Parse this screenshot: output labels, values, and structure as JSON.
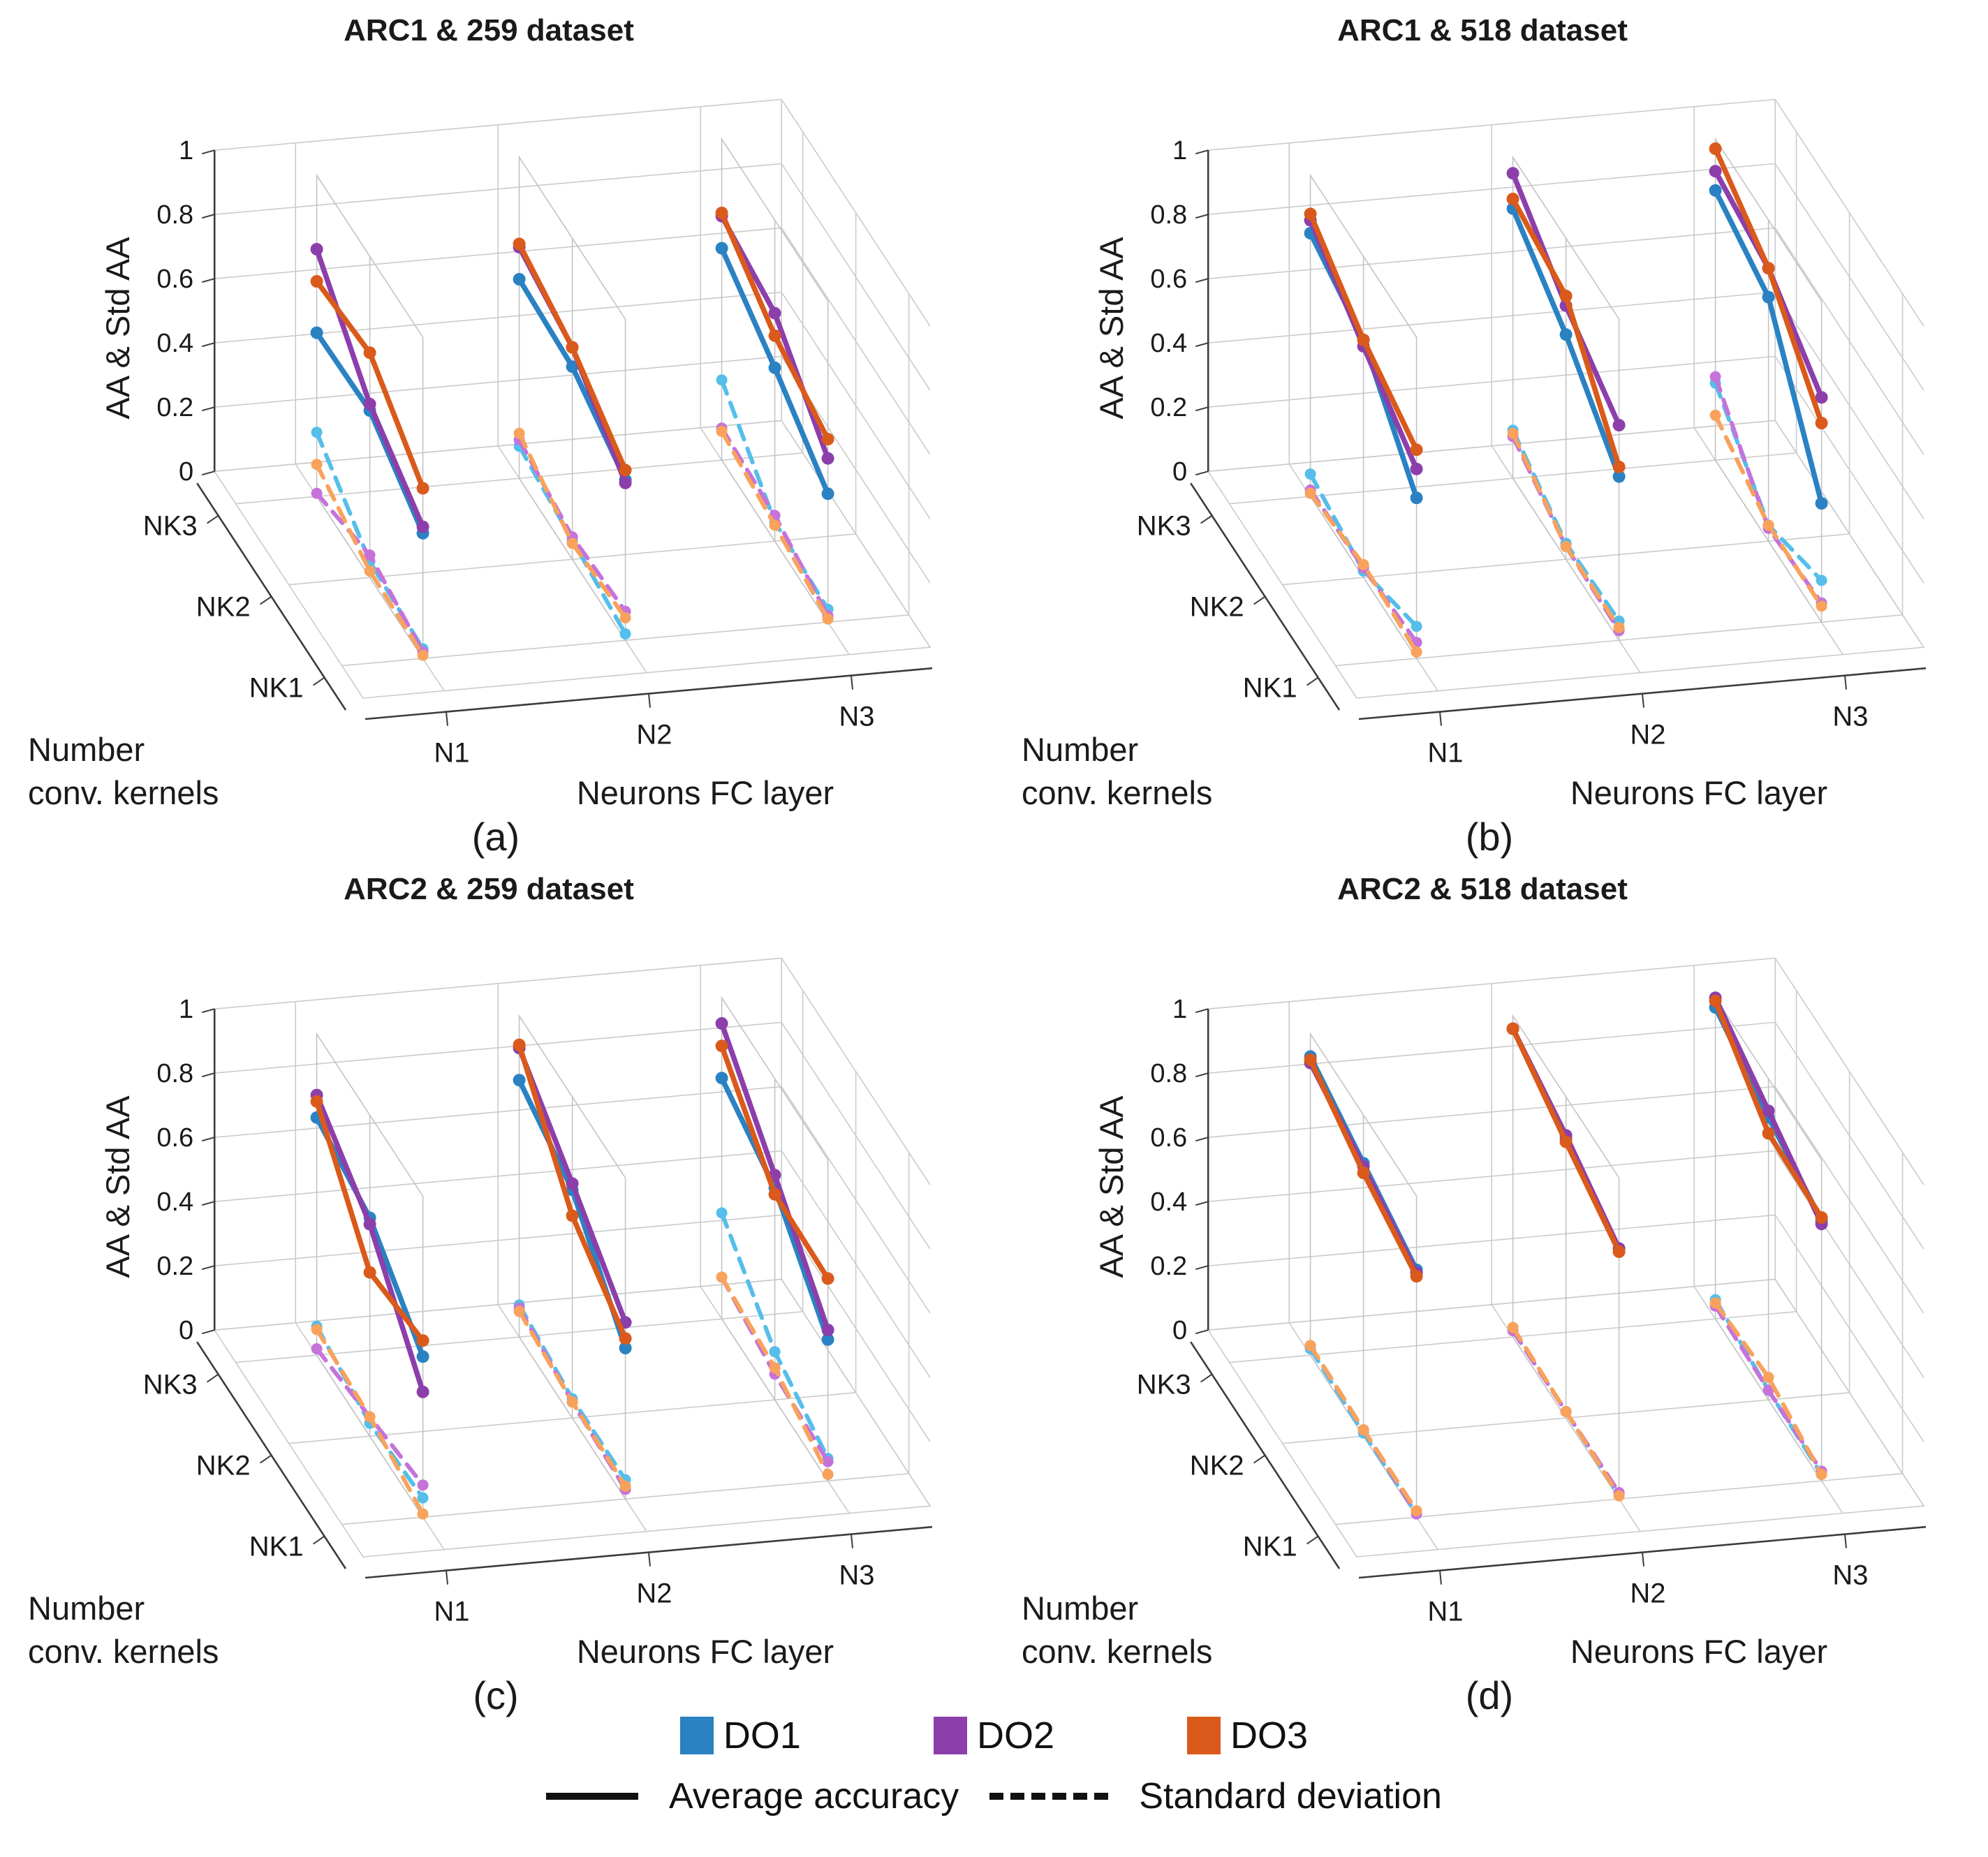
{
  "figure": {
    "background": "#FFFFFF",
    "legend": {
      "series": [
        {
          "label": "DO1",
          "color": "#2A82C3",
          "light_color": "#55BEEA"
        },
        {
          "label": "DO2",
          "color": "#8C3FAB",
          "light_color": "#C573DB"
        },
        {
          "label": "DO3",
          "color": "#DA5A1B",
          "light_color": "#F8A25C"
        }
      ],
      "line_types": [
        {
          "label": "Average accuracy",
          "style": "solid"
        },
        {
          "label": "Standard deviation",
          "style": "dashed"
        }
      ]
    },
    "axes_shared": {
      "zlabel": "AA & Std AA",
      "xlabel": "Neurons FC layer",
      "ylabel": "Number conv. kernels",
      "ylabel_lines": [
        "Number",
        "conv. kernels"
      ],
      "x_ticks": [
        "N1",
        "N2",
        "N3"
      ],
      "y_ticks_back_to_front": [
        "NK3",
        "NK2",
        "NK1"
      ],
      "z_ticks": [
        "0",
        "0.2",
        "0.4",
        "0.6",
        "0.8",
        "1"
      ],
      "zlim": [
        0,
        1
      ],
      "grid": true
    }
  },
  "chart_data": [
    {
      "id": "a",
      "label": "(a)",
      "title": "ARC1 & 259 dataset",
      "type": "line",
      "projection": "3d",
      "nk_order": [
        "NK3",
        "NK2",
        "NK1"
      ],
      "average_accuracy": {
        "N1": {
          "DO1": [
            0.51,
            0.52,
            0.39
          ],
          "DO2": [
            0.77,
            0.54,
            0.41
          ],
          "DO3": [
            0.67,
            0.7,
            0.53
          ]
        },
        "N2": {
          "DO1": [
            0.62,
            0.6,
            0.5
          ],
          "DO2": [
            0.72,
            0.66,
            0.49
          ],
          "DO3": [
            0.73,
            0.66,
            0.53
          ]
        },
        "N3": {
          "DO1": [
            0.66,
            0.54,
            0.4
          ],
          "DO2": [
            0.76,
            0.71,
            0.51
          ],
          "DO3": [
            0.77,
            0.64,
            0.57
          ]
        }
      },
      "standard_deviation": {
        "N1": {
          "DO1": [
            0.2,
            0.05,
            0.03
          ],
          "DO2": [
            0.01,
            0.07,
            0.02
          ],
          "DO3": [
            0.1,
            0.02,
            0.01
          ]
        },
        "N2": {
          "DO1": [
            0.1,
            0.06,
            0.02
          ],
          "DO2": [
            0.12,
            0.07,
            0.09
          ],
          "DO3": [
            0.14,
            0.05,
            0.07
          ]
        },
        "N3": {
          "DO1": [
            0.25,
            0.06,
            0.04
          ],
          "DO2": [
            0.1,
            0.08,
            0.02
          ],
          "DO3": [
            0.09,
            0.05,
            0.01
          ]
        }
      }
    },
    {
      "id": "b",
      "label": "(b)",
      "title": "ARC1 & 518 dataset",
      "type": "line",
      "projection": "3d",
      "nk_order": [
        "NK3",
        "NK2",
        "NK1"
      ],
      "average_accuracy": {
        "N1": {
          "DO1": [
            0.82,
            0.74,
            0.5
          ],
          "DO2": [
            0.86,
            0.72,
            0.59
          ],
          "DO3": [
            0.88,
            0.74,
            0.65
          ]
        },
        "N2": {
          "DO1": [
            0.84,
            0.7,
            0.51
          ],
          "DO2": [
            0.95,
            0.79,
            0.67
          ],
          "DO3": [
            0.87,
            0.82,
            0.54
          ]
        },
        "N3": {
          "DO1": [
            0.84,
            0.76,
            0.37
          ],
          "DO2": [
            0.9,
            0.85,
            0.7
          ],
          "DO3": [
            0.97,
            0.85,
            0.62
          ]
        }
      },
      "standard_deviation": {
        "N1": {
          "DO1": [
            0.07,
            0.02,
            0.1
          ],
          "DO2": [
            0.02,
            0.03,
            0.05
          ],
          "DO3": [
            0.01,
            0.04,
            0.02
          ]
        },
        "N2": {
          "DO1": [
            0.15,
            0.05,
            0.06
          ],
          "DO2": [
            0.13,
            0.04,
            0.03
          ],
          "DO3": [
            0.14,
            0.04,
            0.04
          ]
        },
        "N3": {
          "DO1": [
            0.24,
            0.05,
            0.13
          ],
          "DO2": [
            0.26,
            0.04,
            0.06
          ],
          "DO3": [
            0.14,
            0.05,
            0.05
          ]
        }
      }
    },
    {
      "id": "c",
      "label": "(c)",
      "title": "ARC2 & 259 dataset",
      "type": "line",
      "projection": "3d",
      "nk_order": [
        "NK3",
        "NK2",
        "NK1"
      ],
      "average_accuracy": {
        "N1": {
          "DO1": [
            0.74,
            0.68,
            0.5
          ],
          "DO2": [
            0.81,
            0.66,
            0.39
          ],
          "DO3": [
            0.79,
            0.51,
            0.55
          ]
        },
        "N2": {
          "DO1": [
            0.8,
            0.71,
            0.47
          ],
          "DO2": [
            0.9,
            0.73,
            0.55
          ],
          "DO3": [
            0.91,
            0.63,
            0.5
          ]
        },
        "N3": {
          "DO1": [
            0.75,
            0.66,
            0.44
          ],
          "DO2": [
            0.92,
            0.7,
            0.47
          ],
          "DO3": [
            0.85,
            0.64,
            0.63
          ]
        }
      },
      "standard_deviation": {
        "N1": {
          "DO1": [
            0.09,
            0.04,
            0.06
          ],
          "DO2": [
            0.02,
            0.06,
            0.1
          ],
          "DO3": [
            0.08,
            0.06,
            0.01
          ]
        },
        "N2": {
          "DO1": [
            0.1,
            0.06,
            0.06
          ],
          "DO2": [
            0.09,
            0.05,
            0.03
          ],
          "DO3": [
            0.08,
            0.05,
            0.04
          ]
        },
        "N3": {
          "DO1": [
            0.33,
            0.15,
            0.07
          ],
          "DO2": [
            0.13,
            0.08,
            0.06
          ],
          "DO3": [
            0.13,
            0.1,
            0.02
          ]
        }
      }
    },
    {
      "id": "d",
      "label": "(d)",
      "title": "ARC2 & 518 dataset",
      "type": "line",
      "projection": "3d",
      "nk_order": [
        "NK3",
        "NK2",
        "NK1"
      ],
      "average_accuracy": {
        "N1": {
          "DO1": [
            0.93,
            0.85,
            0.77
          ],
          "DO2": [
            0.91,
            0.84,
            0.76
          ],
          "DO3": [
            0.92,
            0.82,
            0.75
          ]
        },
        "N2": {
          "DO1": [
            0.96,
            0.87,
            0.78
          ],
          "DO2": [
            0.96,
            0.88,
            0.78
          ],
          "DO3": [
            0.96,
            0.86,
            0.77
          ]
        },
        "N3": {
          "DO1": [
            0.97,
            0.88,
            0.81
          ],
          "DO2": [
            1.0,
            0.9,
            0.8
          ],
          "DO3": [
            0.99,
            0.83,
            0.82
          ]
        }
      },
      "standard_deviation": {
        "N1": {
          "DO1": [
            0.02,
            0.01,
            0.01
          ],
          "DO2": [
            0.03,
            0.02,
            0.01
          ],
          "DO3": [
            0.03,
            0.02,
            0.02
          ]
        },
        "N2": {
          "DO1": [
            0.02,
            0.02,
            0.01
          ],
          "DO2": [
            0.02,
            0.02,
            0.02
          ],
          "DO3": [
            0.03,
            0.02,
            0.01
          ]
        },
        "N3": {
          "DO1": [
            0.06,
            0.03,
            0.02
          ],
          "DO2": [
            0.04,
            0.03,
            0.03
          ],
          "DO3": [
            0.05,
            0.07,
            0.02
          ]
        }
      }
    }
  ]
}
